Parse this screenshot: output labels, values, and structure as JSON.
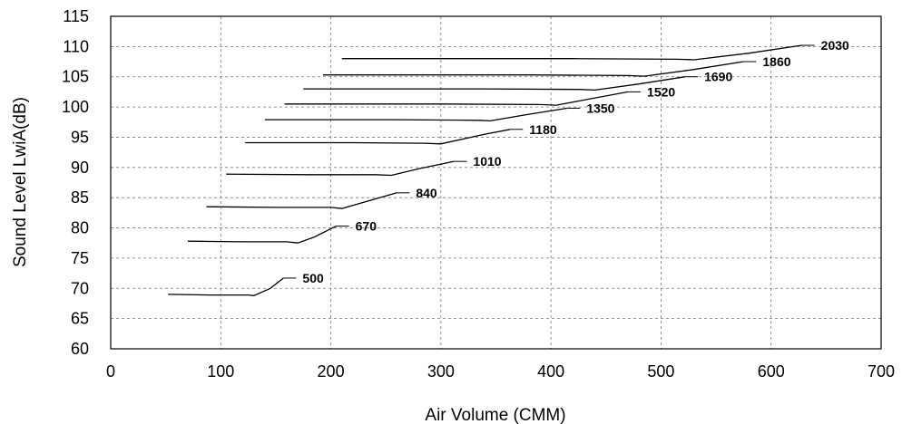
{
  "chart_data": {
    "type": "line",
    "title": "",
    "xlabel": "Air Volume (CMM)",
    "ylabel": "Sound Level LwiA(dB)",
    "xlim": [
      0,
      700
    ],
    "ylim": [
      60,
      115
    ],
    "x_ticks": [
      0,
      100,
      200,
      300,
      400,
      500,
      600,
      700
    ],
    "y_ticks": [
      60,
      65,
      70,
      75,
      80,
      85,
      90,
      95,
      100,
      105,
      110,
      115
    ],
    "grid": true,
    "legend": "none",
    "series": [
      {
        "name": "500",
        "x": [
          52,
          90,
          125,
          130,
          145,
          157
        ],
        "y": [
          69.0,
          68.9,
          68.9,
          68.8,
          70.0,
          71.7
        ]
      },
      {
        "name": "670",
        "x": [
          70,
          120,
          160,
          170,
          185,
          205
        ],
        "y": [
          77.8,
          77.7,
          77.7,
          77.5,
          78.5,
          80.3
        ]
      },
      {
        "name": "840",
        "x": [
          87,
          150,
          200,
          210,
          235,
          260
        ],
        "y": [
          83.5,
          83.4,
          83.4,
          83.2,
          84.5,
          85.8
        ]
      },
      {
        "name": "1010",
        "x": [
          105,
          180,
          240,
          255,
          280,
          312
        ],
        "y": [
          88.9,
          88.8,
          88.8,
          88.7,
          89.8,
          91.0
        ]
      },
      {
        "name": "1180",
        "x": [
          122,
          220,
          285,
          300,
          340,
          363
        ],
        "y": [
          94.1,
          94.1,
          94.0,
          93.9,
          95.5,
          96.3
        ]
      },
      {
        "name": "1350",
        "x": [
          140,
          260,
          335,
          345,
          380,
          415
        ],
        "y": [
          97.9,
          97.9,
          97.8,
          97.7,
          98.8,
          99.8
        ]
      },
      {
        "name": "1520",
        "x": [
          158,
          300,
          390,
          405,
          440,
          470
        ],
        "y": [
          100.5,
          100.5,
          100.4,
          100.3,
          101.5,
          102.5
        ]
      },
      {
        "name": "1690",
        "x": [
          175,
          340,
          425,
          440,
          480,
          522
        ],
        "y": [
          103.0,
          103.0,
          102.9,
          102.8,
          103.8,
          105.0
        ]
      },
      {
        "name": "1860",
        "x": [
          193,
          380,
          470,
          485,
          530,
          575
        ],
        "y": [
          105.3,
          105.3,
          105.2,
          105.1,
          106.2,
          107.5
        ]
      },
      {
        "name": "2030",
        "x": [
          210,
          420,
          515,
          530,
          580,
          628
        ],
        "y": [
          108.0,
          108.0,
          107.9,
          107.8,
          108.9,
          110.2
        ]
      }
    ]
  }
}
